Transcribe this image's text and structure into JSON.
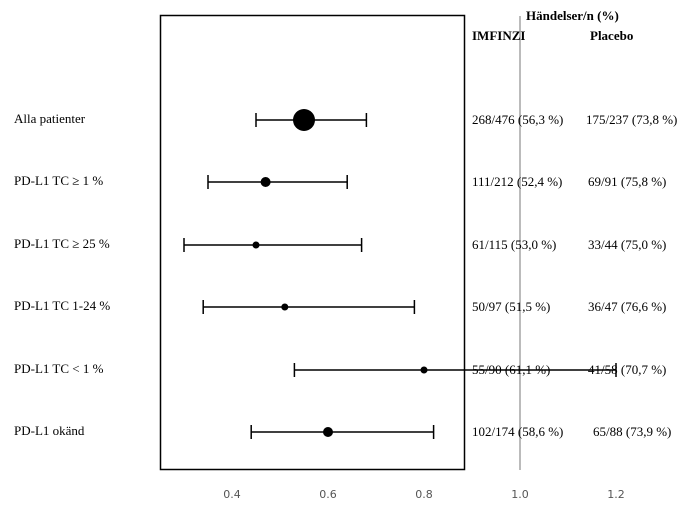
{
  "chart_data": {
    "type": "forest",
    "header": {
      "title": "Händelser/n (%)",
      "col1": "IMFINZI",
      "col2": "Placebo"
    },
    "rows": [
      {
        "label": "Alla patienter",
        "estimate": 0.55,
        "ci": [
          0.45,
          0.68
        ],
        "imfinzi": "268/476 (56,3 %)",
        "placebo": "175/237 (73,8 %)",
        "weight": 11
      },
      {
        "label": "PD-L1 TC  ≥ 1 %",
        "estimate": 0.47,
        "ci": [
          0.35,
          0.64
        ],
        "imfinzi": "111/212 (52,4 %)",
        "placebo": "69/91 (75,8 %)",
        "weight": 5
      },
      {
        "label": "PD-L1 TC ≥ 25 %",
        "estimate": 0.45,
        "ci": [
          0.3,
          0.67
        ],
        "imfinzi": "61/115 (53,0 %)",
        "placebo": "33/44 (75,0 %)",
        "weight": 3.5
      },
      {
        "label": "PD-L1 TC 1-24 %",
        "estimate": 0.51,
        "ci": [
          0.34,
          0.78
        ],
        "imfinzi": "50/97 (51,5 %)",
        "placebo": "36/47 (76,6 %)",
        "weight": 3.5
      },
      {
        "label": "PD-L1 TC < 1 %",
        "estimate": 0.8,
        "ci": [
          0.53,
          1.2
        ],
        "imfinzi": "55/90 (61,1 %)",
        "placebo": "41/58 (70,7 %)",
        "weight": 3.5
      },
      {
        "label": "PD-L1 okänd",
        "estimate": 0.6,
        "ci": [
          0.44,
          0.82
        ],
        "imfinzi": "102/174 (58,6 %)",
        "placebo": "65/88 (73,9 %)",
        "weight": 5
      }
    ],
    "xlim": [
      0.2,
      1.36
    ],
    "xticks": [
      "0.4",
      "0.6",
      "0.8",
      "1.0",
      "1.2"
    ],
    "xtick_values": [
      0.4,
      0.6,
      0.8,
      1.0,
      1.2
    ],
    "reference_line": 1.0
  }
}
